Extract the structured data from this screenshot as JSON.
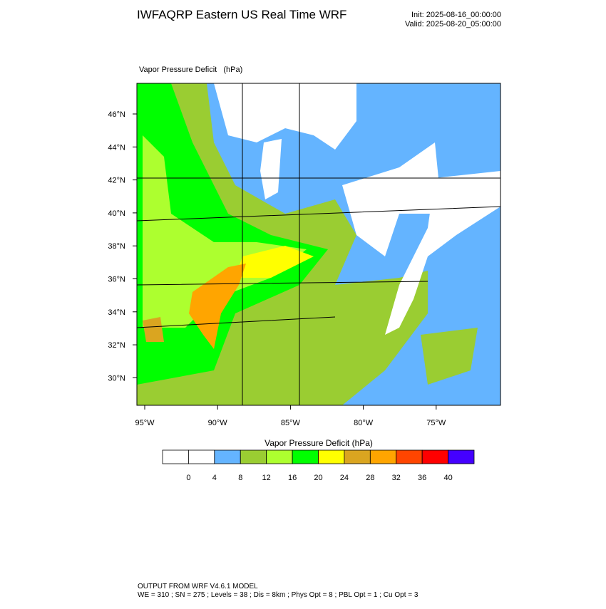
{
  "header": {
    "title": "IWFAQRP Eastern US Real Time WRF",
    "init": "Init: 2025-08-16_00:00:00",
    "valid": "Valid: 2025-08-20_05:00:00"
  },
  "map": {
    "field_label": "Vapor Pressure Deficit   (hPa)",
    "lat_labels": [
      "46°N",
      "44°N",
      "42°N",
      "40°N",
      "38°N",
      "36°N",
      "34°N",
      "32°N",
      "30°N"
    ],
    "lon_labels": [
      "95°W",
      "90°W",
      "85°W",
      "80°W",
      "75°W"
    ]
  },
  "colorbar": {
    "title": "Vapor Pressure Deficit (hPa)",
    "colors": [
      "#ffffff",
      "#ffffff",
      "#64b4ff",
      "#9acd32",
      "#adff2f",
      "#00ff00",
      "#ffff00",
      "#daa520",
      "#ffa500",
      "#ff4500",
      "#ff0000",
      "#4400ff"
    ],
    "labels": [
      "0",
      "4",
      "8",
      "12",
      "16",
      "20",
      "24",
      "28",
      "32",
      "36",
      "40"
    ]
  },
  "footer": {
    "line1": "OUTPUT FROM WRF V4.6.1 MODEL",
    "line2": "WE = 310 ; SN = 275 ; Levels = 38 ; Dis = 8km ; Phys Opt = 8 ; PBL Opt = 1 ; Cu Opt = 3"
  }
}
